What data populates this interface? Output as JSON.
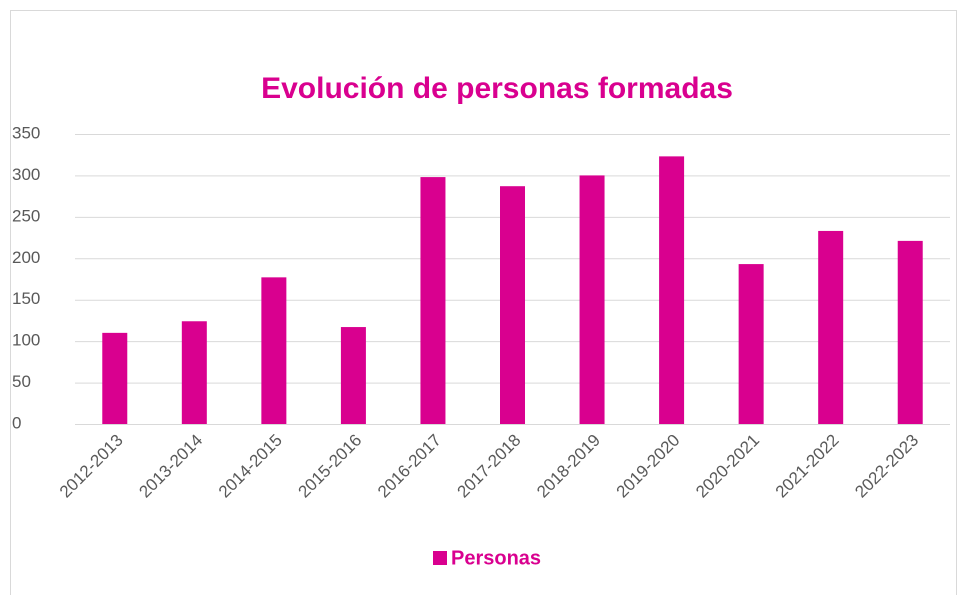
{
  "chart_data": {
    "type": "bar",
    "title": "Evolución de personas formadas",
    "categories": [
      "2012-2013",
      "2013-2014",
      "2014-2015",
      "2015-2016",
      "2016-2017",
      "2017-2018",
      "2018-2019",
      "2019-2020",
      "2020-2021",
      "2021-2022",
      "2022-2023"
    ],
    "series": [
      {
        "name": "Personas",
        "color": "#d9008f",
        "values": [
          110,
          124,
          177,
          117,
          298,
          287,
          300,
          323,
          193,
          233,
          221
        ]
      }
    ],
    "ylim": [
      0,
      350
    ],
    "yticks": [
      0,
      50,
      100,
      150,
      200,
      250,
      300,
      350
    ],
    "grid": true,
    "legend": "bottom"
  }
}
